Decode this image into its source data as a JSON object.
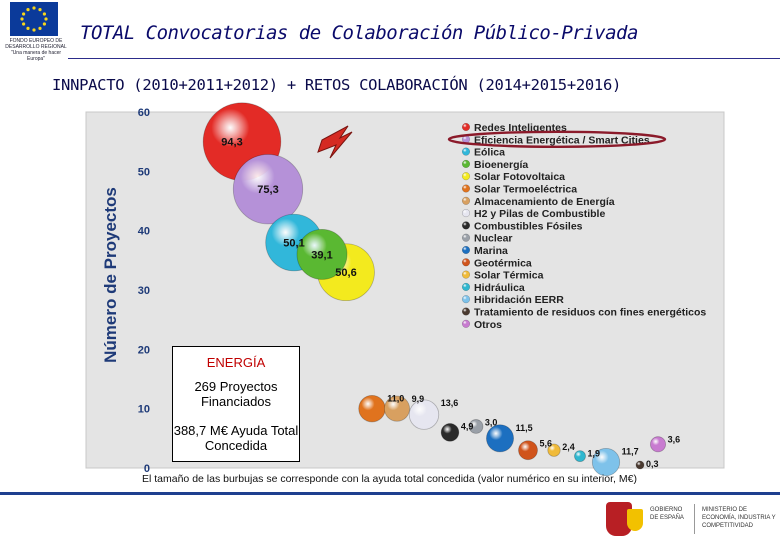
{
  "header": {
    "title": "TOTAL Convocatorias de Colaboración Público-Privada",
    "eu_logo_text": "FONDO EUROPEO DE DESARROLLO REGIONAL \"Una manera de hacer Europa\""
  },
  "subtitle": "INNPACTO (2010+2011+2012) + RETOS COLABORACIÓN (2014+2015+2016)",
  "energy_box": {
    "title": "ENERGÍA",
    "projects": "269 Proyectos Financiados",
    "funding": "388,7 M€ Ayuda Total Concedida"
  },
  "footnote": "El tamaño de las burbujas se corresponde con la ayuda total concedida (valor numérico en su interior, M€)",
  "footer": {
    "gob_text": "GOBIERNO DE ESPAÑA",
    "ministry_text": "MINISTERIO DE ECONOMÍA, INDUSTRIA Y COMPETITIVIDAD"
  },
  "chart_data": {
    "type": "bubble",
    "ylabel": "Número de Proyectos",
    "ylim": [
      0,
      60
    ],
    "yticks": [
      0,
      10,
      20,
      30,
      40,
      50,
      60
    ],
    "grid": false,
    "legend_position": "top-right",
    "highlighted_category": "Eficiencia Energética / Smart Cities",
    "series": [
      {
        "name": "Redes Inteligentes",
        "projects": 55,
        "funding": 94.3,
        "label": "94,3",
        "color": "#e32b26"
      },
      {
        "name": "Eficiencia Energética / Smart Cities",
        "projects": 47,
        "funding": 75.3,
        "label": "75,3",
        "color": "#b591d8"
      },
      {
        "name": "Eólica",
        "projects": 38,
        "funding": 50.1,
        "label": "50,1",
        "color": "#31b7da"
      },
      {
        "name": "Bioenergía",
        "projects": 36,
        "funding": 39.1,
        "label": "39,1",
        "color": "#5ab832"
      },
      {
        "name": "Solar Fotovoltaica",
        "projects": 33,
        "funding": 50.6,
        "label": "50,6",
        "color": "#f3ea1e"
      },
      {
        "name": "Solar Termoeléctrica",
        "projects": 10,
        "funding": 11.0,
        "label": "11,0",
        "color": "#e0731e"
      },
      {
        "name": "Almacenamiento de Energía",
        "projects": 10,
        "funding": 9.9,
        "label": "9,9",
        "color": "#d8a060"
      },
      {
        "name": "H2 y Pilas de Combustible",
        "projects": 9,
        "funding": 13.6,
        "label": "13,6",
        "color": "#e6e6f0"
      },
      {
        "name": "Combustibles Fósiles",
        "projects": 6,
        "funding": 4.9,
        "label": "4,9",
        "color": "#2a2a2a"
      },
      {
        "name": "Nuclear",
        "projects": 7,
        "funding": 3.0,
        "label": "3,0",
        "color": "#9aa0a8"
      },
      {
        "name": "Marina",
        "projects": 5,
        "funding": 11.5,
        "label": "11,5",
        "color": "#1c6fc0"
      },
      {
        "name": "Geotérmica",
        "projects": 3,
        "funding": 5.6,
        "label": "5,6",
        "color": "#d0541c"
      },
      {
        "name": "Solar Térmica",
        "projects": 3,
        "funding": 2.4,
        "label": "2,4",
        "color": "#f0bb3a"
      },
      {
        "name": "Hidráulica",
        "projects": 2,
        "funding": 1.9,
        "label": "1,9",
        "color": "#2fb7cf"
      },
      {
        "name": "Hibridación EERR",
        "projects": 1,
        "funding": 11.7,
        "label": "11,7",
        "color": "#7ec2ea"
      },
      {
        "name": "Tratamiento de residuos con fines energéticos",
        "projects": 0.5,
        "funding": 0.3,
        "label": "0,3",
        "color": "#4a3a30"
      },
      {
        "name": "Otros",
        "projects": 4,
        "funding": 3.6,
        "label": "3,6",
        "color": "#c87bd0"
      }
    ]
  }
}
